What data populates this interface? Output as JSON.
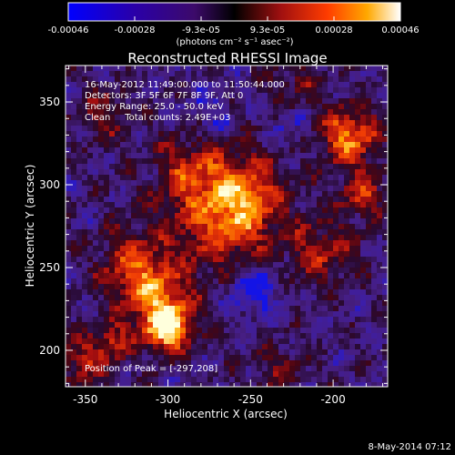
{
  "colorbar": {
    "tick_labels": [
      "-0.00046",
      "-0.00028",
      "-9.3e-05",
      "9.3e-05",
      "0.00028",
      "0.00046"
    ],
    "units_label": "(photons cm⁻² s⁻¹ asec⁻²)"
  },
  "title": "Reconstructed RHESSI Image",
  "annotations": {
    "time_range": "16-May-2012 11:49:00.000 to 11:50:44.000",
    "detectors": "Detectors: 3F 5F 6F 7F 8F 9F, Att 0",
    "energy_range": "Energy Range: 25.0 - 50.0 keV",
    "clean_counts": "Clean     Total counts: 2.49E+03",
    "peak_position": "Position of Peak = [-297,208]"
  },
  "axes": {
    "xlabel": "Heliocentric X (arcsec)",
    "ylabel": "Heliocentric Y (arcsec)",
    "xticks": [
      -350,
      -300,
      -250,
      -200
    ],
    "xtick_labels": [
      "-350",
      "-300",
      "-250",
      "-200"
    ],
    "yticks": [
      200,
      250,
      300,
      350
    ],
    "ytick_labels": [
      "200",
      "250",
      "300",
      "350"
    ],
    "xlim": [
      -362,
      -167
    ],
    "ylim": [
      178,
      372
    ]
  },
  "footer_date": "8-May-2014 07:12",
  "colors": {
    "background": "#000000",
    "foreground": "#ffffff"
  }
}
